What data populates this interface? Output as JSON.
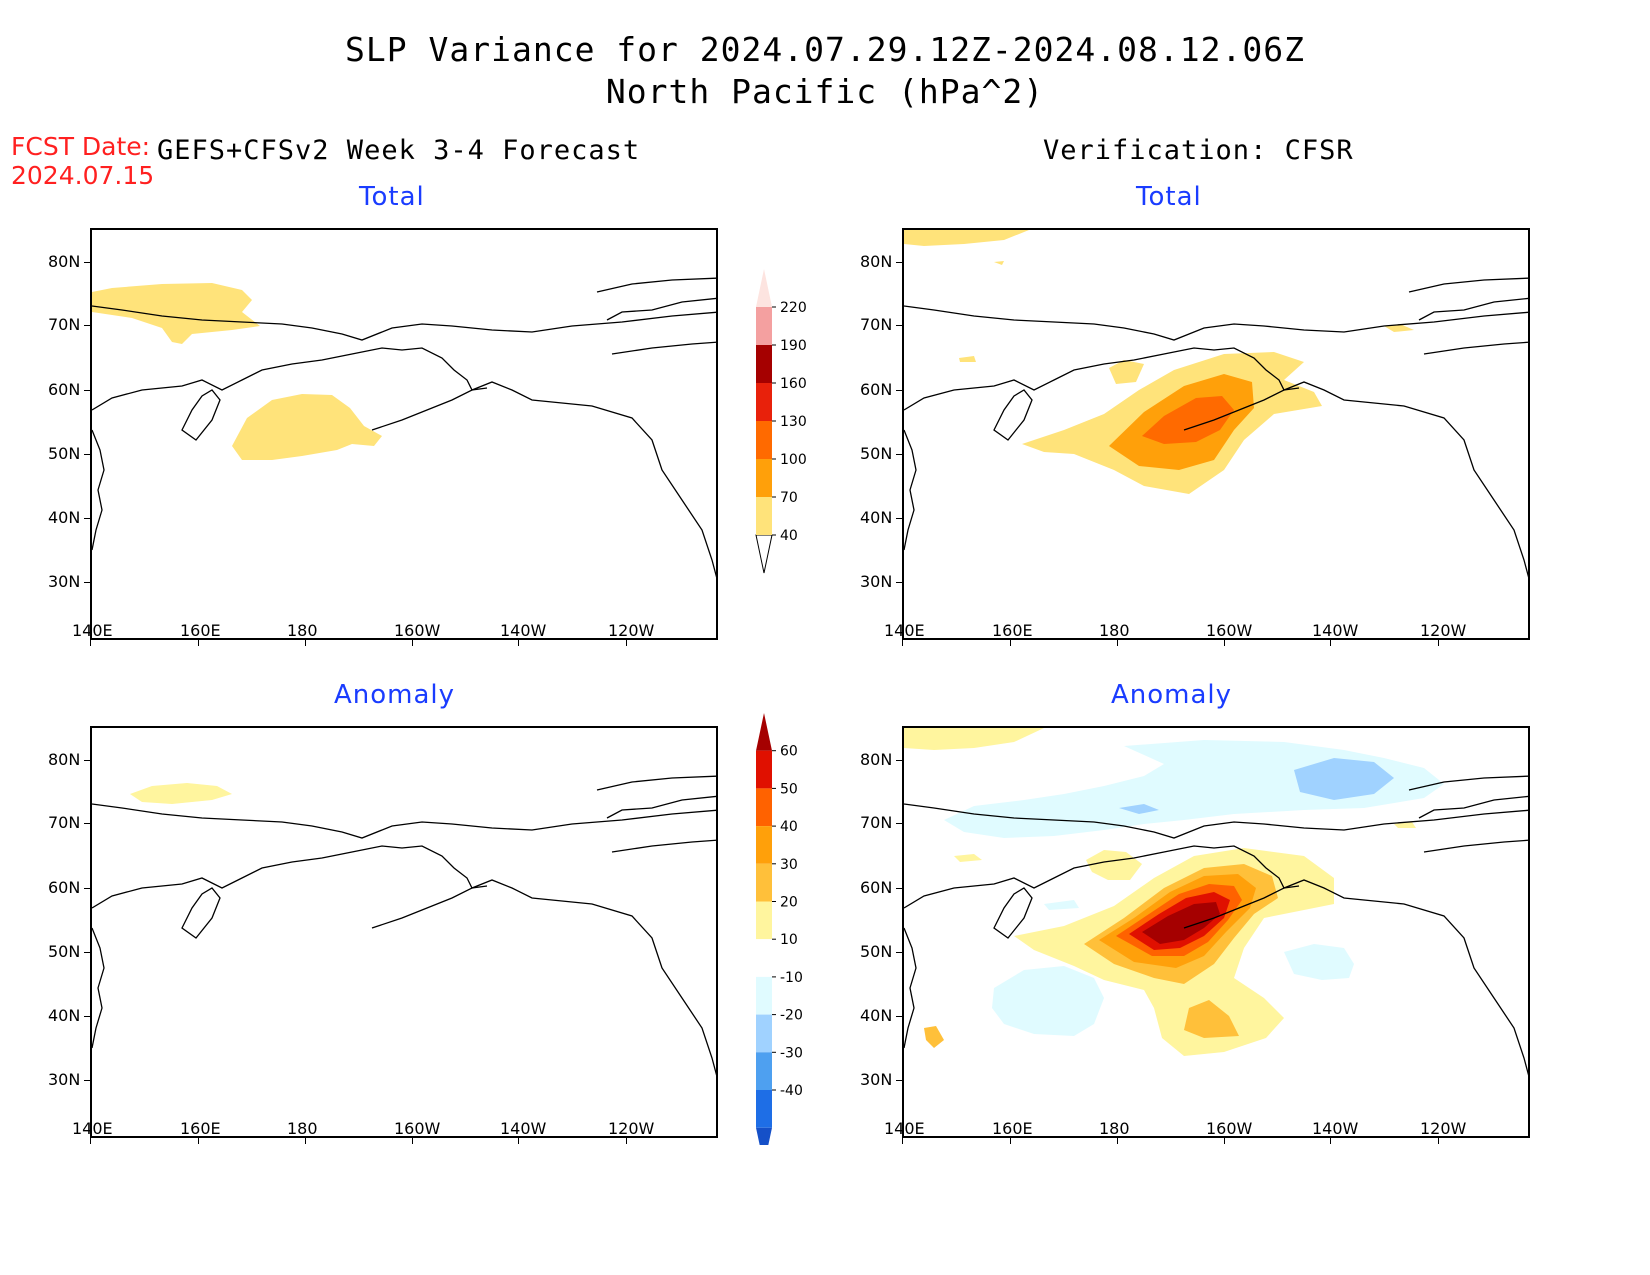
{
  "title_line1": "SLP Variance for 2024.07.29.12Z-2024.08.12.06Z",
  "title_line2": "North Pacific (hPa^2)",
  "fcst_label": "FCST Date:",
  "fcst_date": "2024.07.15",
  "left_header": "GEFS+CFSv2 Week 3-4 Forecast",
  "right_header": "Verification: CFSR",
  "panels": {
    "fcst_total_title": "Total",
    "verif_total_title": "Total",
    "fcst_anom_title": "Anomaly",
    "verif_anom_title": "Anomaly"
  },
  "y_ticks": [
    "80N",
    "70N",
    "60N",
    "50N",
    "40N",
    "30N"
  ],
  "x_ticks": [
    "140E",
    "160E",
    "180",
    "160W",
    "140W",
    "120W"
  ],
  "total_colorbar": {
    "levels": [
      "40",
      "70",
      "100",
      "130",
      "160",
      "190",
      "220"
    ],
    "colors": [
      "#ffe37a",
      "#ffa00a",
      "#ff6a00",
      "#e8210b",
      "#a50000",
      "#f4a0a0",
      "#fde4e0"
    ]
  },
  "anomaly_colorbar": {
    "levels": [
      "60",
      "50",
      "40",
      "30",
      "20",
      "10",
      "-10",
      "-20",
      "-30",
      "-40"
    ],
    "colors": [
      "#a50000",
      "#e01000",
      "#ff6200",
      "#ffa00a",
      "#ffc03a",
      "#fff59e",
      "#ffffff",
      "#e0fbff",
      "#a0d2ff",
      "#4ea0f0",
      "#1e6ee6",
      "#1550c8"
    ]
  }
}
